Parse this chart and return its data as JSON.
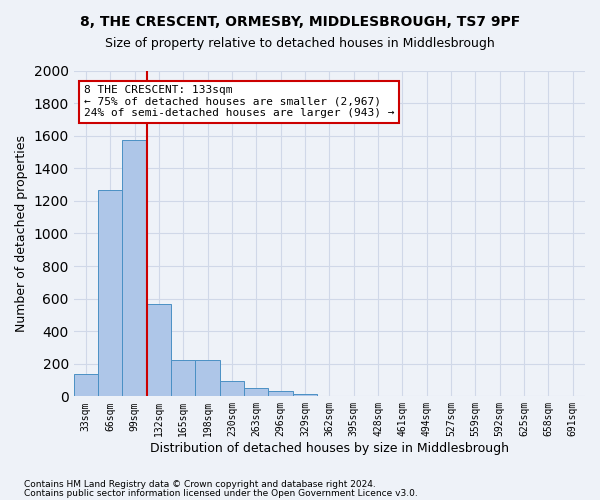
{
  "title1": "8, THE CRESCENT, ORMESBY, MIDDLESBROUGH, TS7 9PF",
  "title2": "Size of property relative to detached houses in Middlesbrough",
  "xlabel": "Distribution of detached houses by size in Middlesbrough",
  "ylabel": "Number of detached properties",
  "bar_values": [
    140,
    1265,
    1575,
    565,
    220,
    220,
    95,
    50,
    30,
    15,
    0,
    0,
    0,
    0,
    0,
    0,
    0,
    0,
    0,
    0,
    0
  ],
  "categories": [
    "33sqm",
    "66sqm",
    "99sqm",
    "132sqm",
    "165sqm",
    "198sqm",
    "230sqm",
    "263sqm",
    "296sqm",
    "329sqm",
    "362sqm",
    "395sqm",
    "428sqm",
    "461sqm",
    "494sqm",
    "527sqm",
    "559sqm",
    "592sqm",
    "625sqm",
    "658sqm",
    "691sqm"
  ],
  "bar_color": "#aec6e8",
  "bar_edge_color": "#4a90c4",
  "annotation_text": "8 THE CRESCENT: 133sqm\n← 75% of detached houses are smaller (2,967)\n24% of semi-detached houses are larger (943) →",
  "annotation_box_color": "#ffffff",
  "annotation_border_color": "#cc0000",
  "vline_color": "#cc0000",
  "vline_x": 2.5,
  "ylim": [
    0,
    2000
  ],
  "yticks": [
    0,
    200,
    400,
    600,
    800,
    1000,
    1200,
    1400,
    1600,
    1800,
    2000
  ],
  "grid_color": "#d0d8e8",
  "bg_color": "#eef2f8",
  "footer1": "Contains HM Land Registry data © Crown copyright and database right 2024.",
  "footer2": "Contains public sector information licensed under the Open Government Licence v3.0."
}
